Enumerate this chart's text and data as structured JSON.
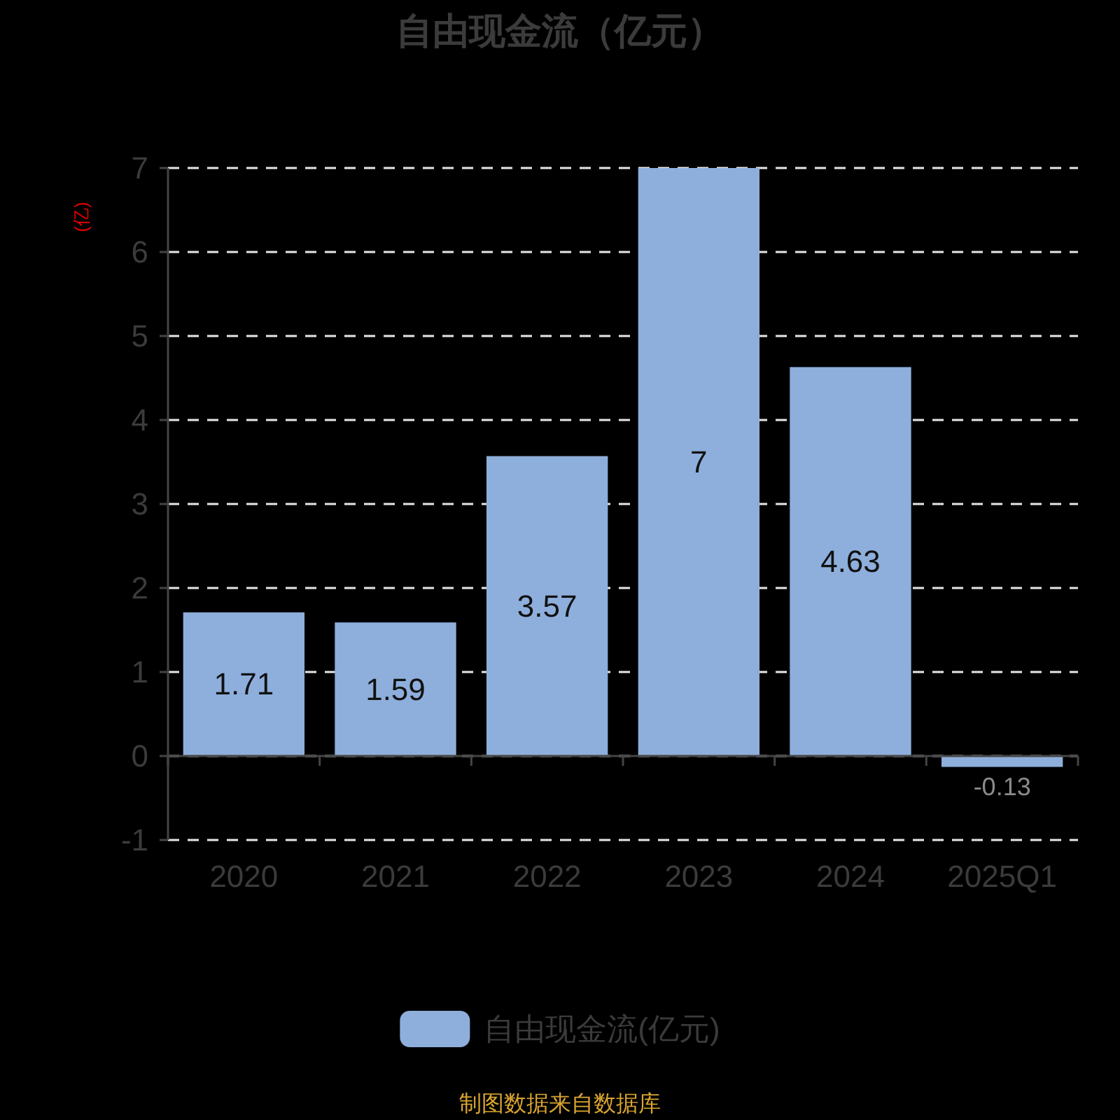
{
  "chart_data": {
    "type": "bar",
    "title": "自由现金流（亿元）",
    "ylabel": "(亿)",
    "categories": [
      "2020",
      "2021",
      "2022",
      "2023",
      "2024",
      "2025Q1"
    ],
    "series": [
      {
        "name": "自由现金流(亿元)",
        "color": "#8eafdc",
        "values": [
          1.71,
          1.59,
          3.57,
          7,
          4.63,
          -0.13
        ]
      }
    ],
    "ylim": [
      -1,
      7
    ],
    "yticks": [
      -1,
      0,
      1,
      2,
      3,
      4,
      5,
      6,
      7
    ],
    "grid": "y",
    "legend": "bottom",
    "data_labels": true,
    "annotations": [
      "制图数据来自数据库"
    ]
  }
}
